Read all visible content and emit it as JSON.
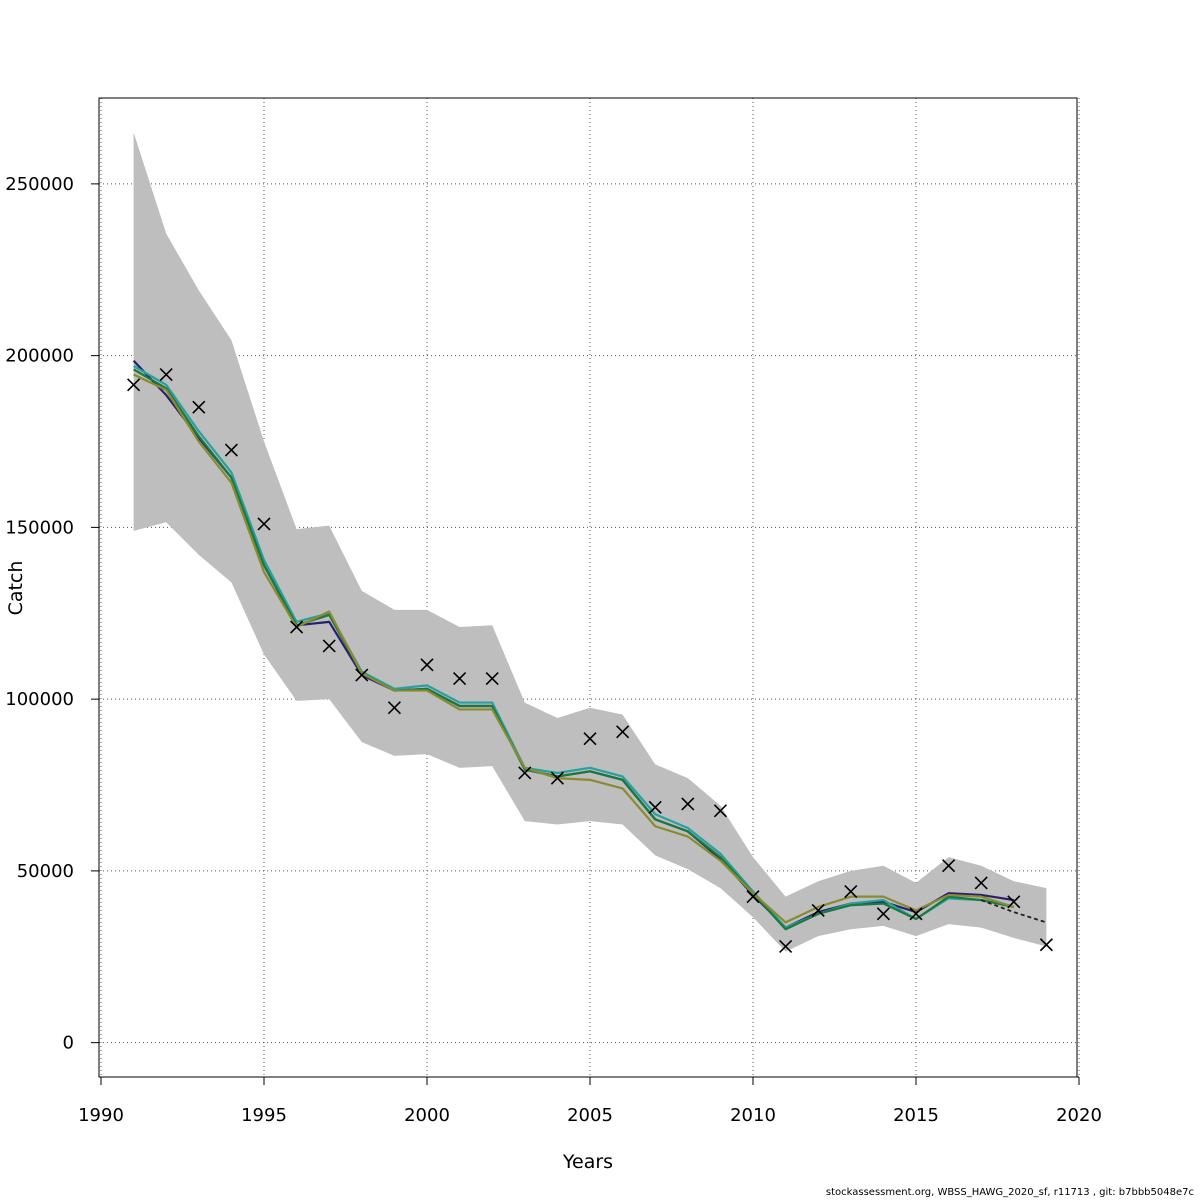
{
  "chart_data": {
    "type": "line",
    "title": "",
    "xlabel": "Years",
    "ylabel": "Catch",
    "xlim": [
      1990,
      2020
    ],
    "ylim": [
      -10000,
      275000
    ],
    "x_ticks": [
      1990,
      1995,
      2000,
      2005,
      2010,
      2015,
      2020
    ],
    "x_tick_labels": [
      "1990",
      "1995",
      "2000",
      "2005",
      "2010",
      "2015",
      "2020"
    ],
    "y_ticks": [
      0,
      50000,
      100000,
      150000,
      200000,
      250000
    ],
    "y_tick_labels": [
      "0",
      "50000",
      "100000",
      "150000",
      "200000",
      "250000"
    ],
    "grid": true,
    "legend": "none",
    "band": {
      "color": "#bebebe",
      "x": [
        1991,
        1992,
        1993,
        1994,
        1995,
        1996,
        1997,
        1998,
        1999,
        2000,
        2001,
        2002,
        2003,
        2004,
        2005,
        2006,
        2007,
        2008,
        2009,
        2010,
        2011,
        2012,
        2013,
        2014,
        2015,
        2016,
        2017,
        2018,
        2019
      ],
      "upper": [
        265000,
        235500,
        219000,
        204500,
        175000,
        149500,
        150500,
        131500,
        126000,
        126000,
        121000,
        121500,
        99000,
        94500,
        97500,
        95500,
        81000,
        77000,
        69000,
        54000,
        42500,
        47000,
        50000,
        51500,
        46500,
        54000,
        51500,
        47000,
        45000
      ],
      "lower": [
        149000,
        151500,
        142000,
        134000,
        113000,
        99500,
        100000,
        87500,
        83500,
        84000,
        80000,
        80500,
        64500,
        63500,
        64500,
        63500,
        54500,
        50500,
        45000,
        36500,
        26500,
        31000,
        33000,
        34000,
        31000,
        34500,
        33500,
        30500,
        28000
      ]
    },
    "series": [
      {
        "color": "#2b1e6e",
        "x": [
          1991,
          1992,
          1993,
          1994,
          1995,
          1996,
          1997,
          1998,
          1999,
          2000,
          2001,
          2002,
          2003,
          2004,
          2005,
          2006,
          2007,
          2008,
          2009,
          2010,
          2011,
          2012,
          2013,
          2014,
          2015,
          2016,
          2017,
          2018
        ],
        "values": [
          198500,
          188500,
          176000,
          164500,
          139000,
          121500,
          122500,
          107000,
          102500,
          103000,
          98000,
          98000,
          79500,
          77500,
          79000,
          76500,
          65000,
          61500,
          53500,
          43000,
          33500,
          38000,
          40500,
          41000,
          38000,
          43500,
          43000,
          41500
        ]
      },
      {
        "color": "#28a0a0",
        "x": [
          1991,
          1992,
          1993,
          1994,
          1995,
          1996,
          1997,
          1998,
          1999,
          2000,
          2001,
          2002,
          2003,
          2004,
          2005,
          2006,
          2007,
          2008,
          2009,
          2010,
          2011,
          2012,
          2013,
          2014,
          2015,
          2016,
          2017,
          2018
        ],
        "values": [
          197000,
          191500,
          178000,
          166000,
          140500,
          122500,
          125000,
          108000,
          103000,
          104000,
          99000,
          99000,
          80000,
          78500,
          80000,
          77500,
          66500,
          62500,
          55000,
          44000,
          33500,
          37500,
          40500,
          41500,
          36000,
          42000,
          41500,
          39500
        ]
      },
      {
        "color": "#1a7a3e",
        "x": [
          1991,
          1992,
          1993,
          1994,
          1995,
          1996,
          1997,
          1998,
          1999,
          2000,
          2001,
          2002,
          2003,
          2004,
          2005,
          2006,
          2007,
          2008,
          2009,
          2010,
          2011,
          2012,
          2013,
          2014,
          2015,
          2016,
          2017,
          2018
        ],
        "values": [
          196000,
          190500,
          176500,
          164500,
          139000,
          121500,
          124500,
          107500,
          102500,
          103000,
          98000,
          98000,
          79500,
          77500,
          79000,
          76500,
          65000,
          61500,
          54000,
          43500,
          33000,
          37500,
          40000,
          40500,
          36000,
          42500,
          41500,
          39500
        ]
      },
      {
        "color": "#8a8a30",
        "x": [
          1991,
          1992,
          1993,
          1994,
          1995,
          1996,
          1997,
          1998,
          1999,
          2000,
          2001,
          2002,
          2003,
          2004,
          2005,
          2006,
          2007,
          2008,
          2009,
          2010,
          2011,
          2012,
          2013,
          2014,
          2015,
          2016,
          2017,
          2018
        ],
        "values": [
          194500,
          190000,
          175000,
          163000,
          137000,
          121000,
          125500,
          107500,
          102500,
          102500,
          97000,
          97000,
          80000,
          77000,
          76500,
          74000,
          63000,
          60000,
          53000,
          43500,
          35000,
          39500,
          42500,
          42500,
          38500,
          43000,
          42500,
          39500
        ]
      },
      {
        "color": "#222222",
        "dashed": true,
        "x": [
          2017,
          2018,
          2019
        ],
        "values": [
          41500,
          38000,
          35000
        ]
      }
    ],
    "observations": {
      "marker": "x",
      "x": [
        1991,
        1992,
        1993,
        1994,
        1995,
        1996,
        1997,
        1998,
        1999,
        2000,
        2001,
        2002,
        2003,
        2004,
        2005,
        2006,
        2007,
        2008,
        2009,
        2010,
        2011,
        2012,
        2013,
        2014,
        2015,
        2016,
        2017,
        2018,
        2019
      ],
      "values": [
        191500,
        194500,
        185000,
        172500,
        151000,
        121000,
        115500,
        107000,
        97500,
        110000,
        106000,
        106000,
        78500,
        77000,
        88500,
        90500,
        68500,
        69500,
        67500,
        42500,
        28000,
        38500,
        44000,
        37500,
        37500,
        51500,
        46500,
        41000,
        28500
      ]
    }
  },
  "footer": "stockassessment.org, WBSS_HAWG_2020_sf, r11713 , git: b7bbb5048e7c"
}
